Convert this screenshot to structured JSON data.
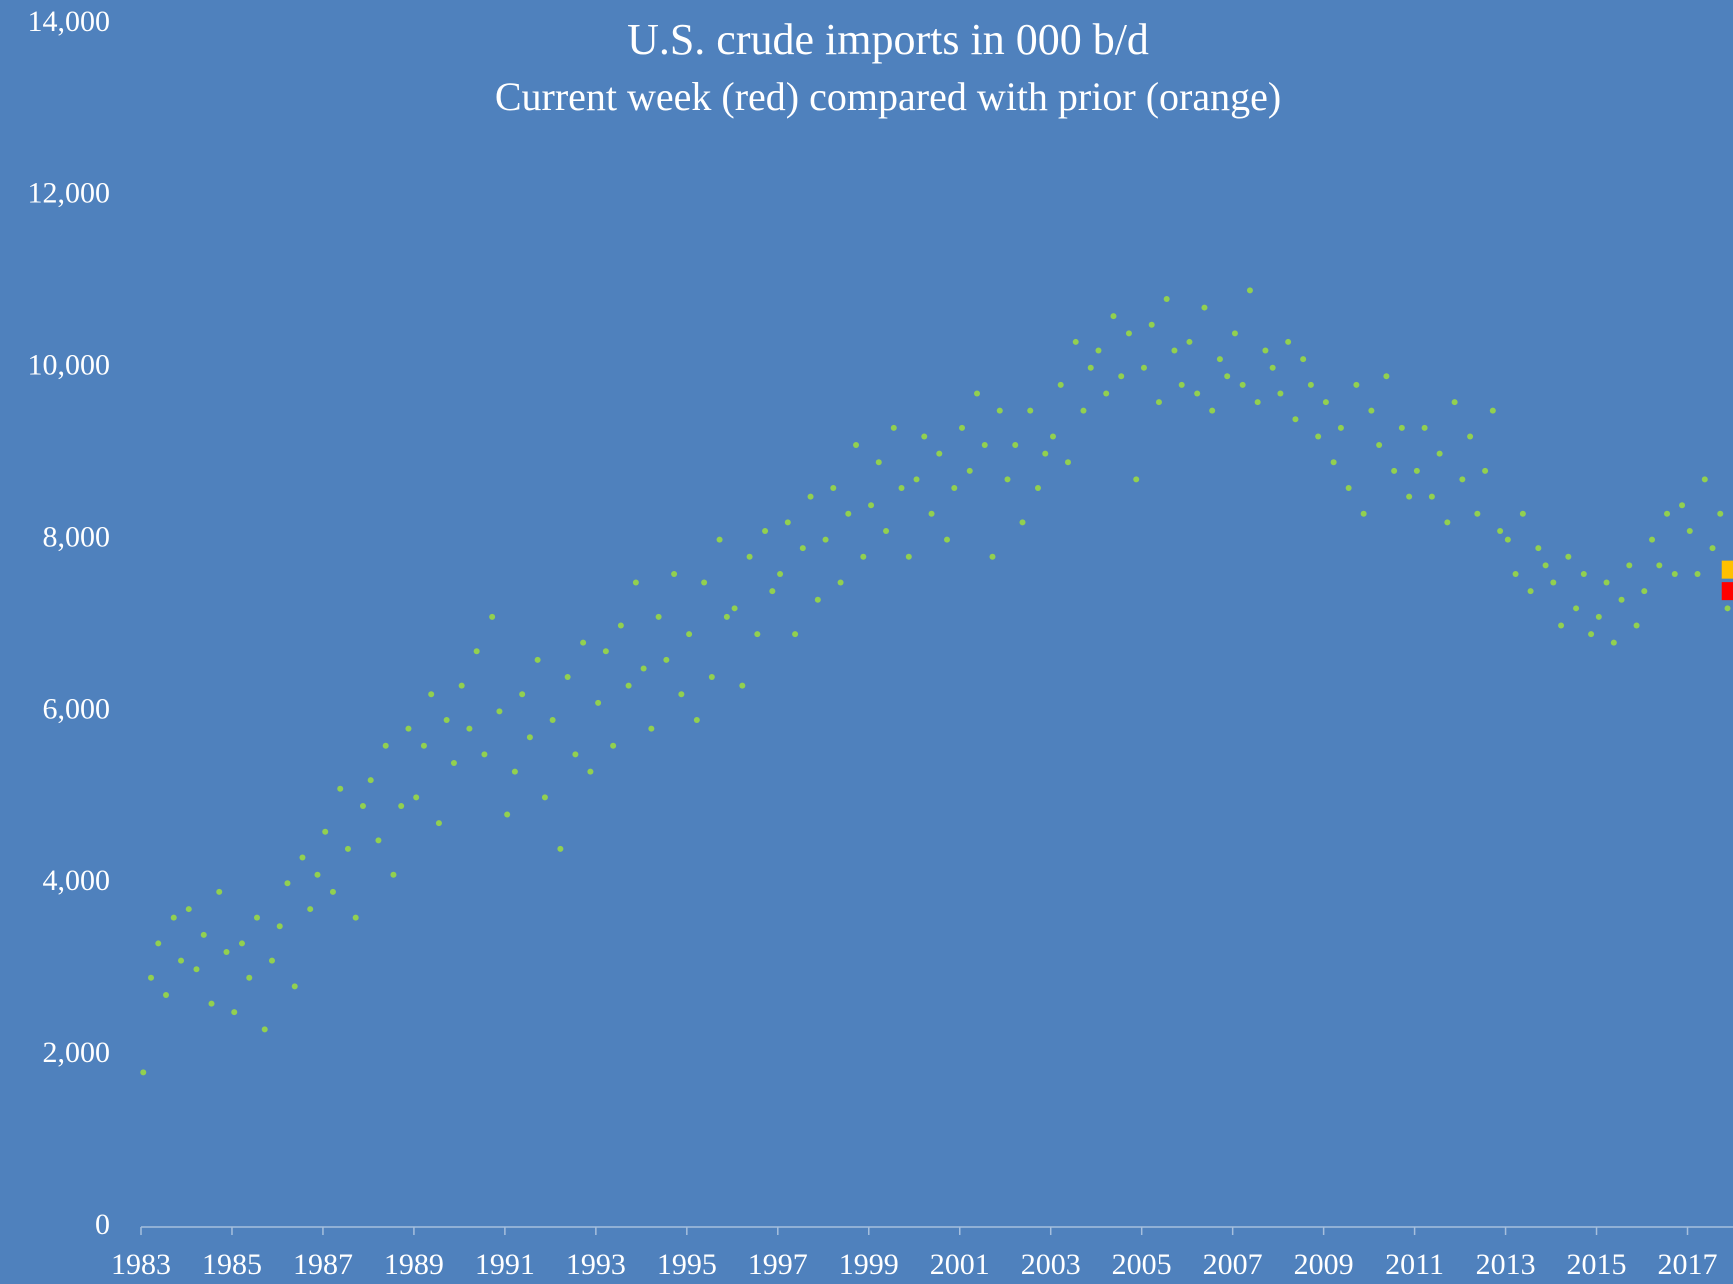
{
  "chart_data": {
    "type": "scatter",
    "title": "U.S. crude imports in 000 b/d",
    "subtitle": "Current week (red) compared with prior (orange)",
    "xlim": [
      1983,
      2018
    ],
    "ylim": [
      0,
      14000
    ],
    "xticks": [
      1983,
      1985,
      1987,
      1989,
      1991,
      1993,
      1995,
      1997,
      1999,
      2001,
      2003,
      2005,
      2007,
      2009,
      2011,
      2013,
      2015,
      2017
    ],
    "yticks": [
      0,
      {
        "value": 2000,
        "label": "2,000"
      },
      {
        "value": 4000,
        "label": "4,000"
      },
      {
        "value": 6000,
        "label": "6,000"
      },
      {
        "value": 8000,
        "label": "8,000"
      },
      {
        "value": 10000,
        "label": "10,000"
      },
      {
        "value": 12000,
        "label": "12,000"
      },
      {
        "value": 14000,
        "label": "14,000"
      }
    ],
    "series": [
      {
        "color": "#92d050",
        "marker": "circle",
        "x": [
          1983.05,
          1983.22,
          1983.38,
          1983.55,
          1983.72,
          1983.88,
          1984.05,
          1984.22,
          1984.38,
          1984.55,
          1984.72,
          1984.88,
          1985.05,
          1985.22,
          1985.38,
          1985.55,
          1985.72,
          1985.88,
          1986.05,
          1986.22,
          1986.38,
          1986.55,
          1986.72,
          1986.88,
          1987.05,
          1987.22,
          1987.38,
          1987.55,
          1987.72,
          1987.88,
          1988.05,
          1988.22,
          1988.38,
          1988.55,
          1988.72,
          1988.88,
          1989.05,
          1989.22,
          1989.38,
          1989.55,
          1989.72,
          1989.88,
          1990.05,
          1990.22,
          1990.38,
          1990.55,
          1990.72,
          1990.88,
          1991.05,
          1991.22,
          1991.38,
          1991.55,
          1991.72,
          1991.88,
          1992.05,
          1992.22,
          1992.38,
          1992.55,
          1992.72,
          1992.88,
          1993.05,
          1993.22,
          1993.38,
          1993.55,
          1993.72,
          1993.88,
          1994.05,
          1994.22,
          1994.38,
          1994.55,
          1994.72,
          1994.88,
          1995.05,
          1995.22,
          1995.38,
          1995.55,
          1995.72,
          1995.88,
          1996.05,
          1996.22,
          1996.38,
          1996.55,
          1996.72,
          1996.88,
          1997.05,
          1997.22,
          1997.38,
          1997.55,
          1997.72,
          1997.88,
          1998.05,
          1998.22,
          1998.38,
          1998.55,
          1998.72,
          1998.88,
          1999.05,
          1999.22,
          1999.38,
          1999.55,
          1999.72,
          1999.88,
          2000.05,
          2000.22,
          2000.38,
          2000.55,
          2000.72,
          2000.88,
          2001.05,
          2001.22,
          2001.38,
          2001.55,
          2001.72,
          2001.88,
          2002.05,
          2002.22,
          2002.38,
          2002.55,
          2002.72,
          2002.88,
          2003.05,
          2003.22,
          2003.38,
          2003.55,
          2003.72,
          2003.88,
          2004.05,
          2004.22,
          2004.38,
          2004.55,
          2004.72,
          2004.88,
          2005.05,
          2005.22,
          2005.38,
          2005.55,
          2005.72,
          2005.88,
          2006.05,
          2006.22,
          2006.38,
          2006.55,
          2006.72,
          2006.88,
          2007.05,
          2007.22,
          2007.38,
          2007.55,
          2007.72,
          2007.88,
          2008.05,
          2008.22,
          2008.38,
          2008.55,
          2008.72,
          2008.88,
          2009.05,
          2009.22,
          2009.38,
          2009.55,
          2009.72,
          2009.88,
          2010.05,
          2010.22,
          2010.38,
          2010.55,
          2010.72,
          2010.88,
          2011.05,
          2011.22,
          2011.38,
          2011.55,
          2011.72,
          2011.88,
          2012.05,
          2012.22,
          2012.38,
          2012.55,
          2012.72,
          2012.88,
          2013.05,
          2013.22,
          2013.38,
          2013.55,
          2013.72,
          2013.88,
          2014.05,
          2014.22,
          2014.38,
          2014.55,
          2014.72,
          2014.88,
          2015.05,
          2015.22,
          2015.38,
          2015.55,
          2015.72,
          2015.88,
          2016.05,
          2016.22,
          2016.38,
          2016.55,
          2016.72,
          2016.88,
          2017.05,
          2017.22,
          2017.38,
          2017.55,
          2017.72,
          2017.88
        ],
        "values": [
          1800,
          2900,
          3300,
          2700,
          3600,
          3100,
          3700,
          3000,
          3400,
          2600,
          3900,
          3200,
          2500,
          3300,
          2900,
          3600,
          2300,
          3100,
          3500,
          4000,
          2800,
          4300,
          3700,
          4100,
          4600,
          3900,
          5100,
          4400,
          3600,
          4900,
          5200,
          4500,
          5600,
          4100,
          4900,
          5800,
          5000,
          5600,
          6200,
          4700,
          5900,
          5400,
          6300,
          5800,
          6700,
          5500,
          7100,
          6000,
          4800,
          5300,
          6200,
          5700,
          6600,
          5000,
          5900,
          4400,
          6400,
          5500,
          6800,
          5300,
          6100,
          6700,
          5600,
          7000,
          6300,
          7500,
          6500,
          5800,
          7100,
          6600,
          7600,
          6200,
          6900,
          5900,
          7500,
          6400,
          8000,
          7100,
          7200,
          6300,
          7800,
          6900,
          8100,
          7400,
          7600,
          8200,
          6900,
          7900,
          8500,
          7300,
          8000,
          8600,
          7500,
          8300,
          9100,
          7800,
          8400,
          8900,
          8100,
          9300,
          8600,
          7800,
          8700,
          9200,
          8300,
          9000,
          8000,
          8600,
          9300,
          8800,
          9700,
          9100,
          7800,
          9500,
          8700,
          9100,
          8200,
          9500,
          8600,
          9000,
          9200,
          9800,
          8900,
          10300,
          9500,
          10000,
          10200,
          9700,
          10600,
          9900,
          10400,
          8700,
          10000,
          10500,
          9600,
          10800,
          10200,
          9800,
          10300,
          9700,
          10700,
          9500,
          10100,
          9900,
          10400,
          9800,
          10900,
          9600,
          10200,
          10000,
          9700,
          10300,
          9400,
          10100,
          9800,
          9200,
          9600,
          8900,
          9300,
          8600,
          9800,
          8300,
          9500,
          9100,
          9900,
          8800,
          9300,
          8500,
          8800,
          9300,
          8500,
          9000,
          8200,
          9600,
          8700,
          9200,
          8300,
          8800,
          9500,
          8100,
          8000,
          7600,
          8300,
          7400,
          7900,
          7700,
          7500,
          7000,
          7800,
          7200,
          7600,
          6900,
          7100,
          7500,
          6800,
          7300,
          7700,
          7000,
          7400,
          8000,
          7700,
          8300,
          7600,
          8400,
          8100,
          7600,
          8700,
          7900,
          8300,
          7200
        ]
      },
      {
        "color": "#ffc000",
        "marker": "square",
        "x": [
          2017.95
        ],
        "values": [
          7650
        ]
      },
      {
        "color": "#ff0000",
        "marker": "square",
        "x": [
          2017.95
        ],
        "values": [
          7400
        ]
      }
    ]
  }
}
